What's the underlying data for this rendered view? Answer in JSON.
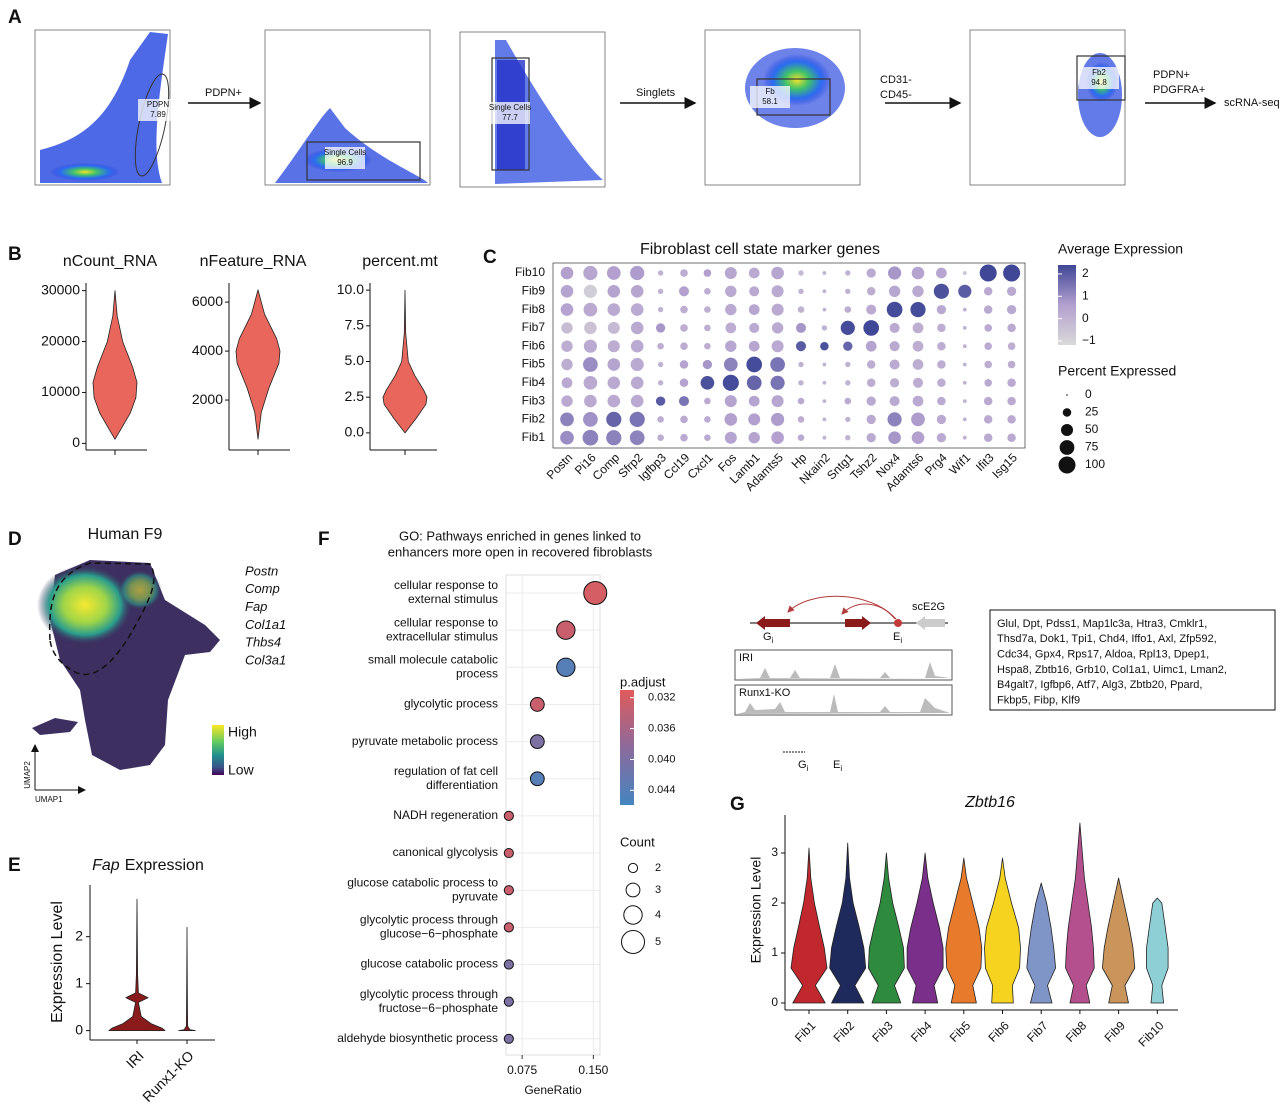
{
  "panel_labels": [
    "A",
    "B",
    "C",
    "D",
    "E",
    "F",
    "G"
  ],
  "a": {
    "gates": [
      {
        "name": "PDPN",
        "value": 7.89
      },
      {
        "name": "Single Cells",
        "value": 96.9
      },
      {
        "name": "Single Cells",
        "value": 77.7
      },
      {
        "name": "Fb",
        "value": 58.1
      },
      {
        "name": "Fb2",
        "value": 94.8
      }
    ],
    "steps": [
      [
        "PDPN+"
      ],
      [
        "Singlets"
      ],
      [
        "CD31-",
        "CD45-"
      ],
      [
        "PDPN+",
        "PDGFRA+"
      ]
    ],
    "output": "scRNA-seq"
  },
  "b": {
    "charts": [
      {
        "type": "violin",
        "title": "nCount_RNA",
        "color": "#e8665c",
        "ylim": [
          -1300,
          31500
        ],
        "yticks": [
          0,
          10000,
          20000,
          30000
        ],
        "y": [
          800,
          3000,
          6000,
          9000,
          12000,
          15000,
          20000,
          25000,
          30000
        ],
        "density": [
          0,
          0.3,
          0.7,
          0.95,
          1,
          0.8,
          0.35,
          0.1,
          0
        ]
      },
      {
        "type": "violin",
        "title": "nFeature_RNA",
        "color": "#e8665c",
        "ylim": [
          -40,
          6780
        ],
        "yticks": [
          2000,
          4000,
          6000
        ],
        "y": [
          400,
          1500,
          2500,
          3500,
          4000,
          4500,
          5500,
          6500
        ],
        "density": [
          0,
          0.15,
          0.5,
          0.95,
          1,
          0.85,
          0.3,
          0
        ]
      },
      {
        "type": "violin",
        "title": "percent.mt",
        "color": "#e8665c",
        "ylim": [
          -1.2,
          10.5
        ],
        "yticks": [
          {
            "value": 0,
            "label": "0.0"
          },
          2.5,
          {
            "value": 5,
            "label": "5.0"
          },
          7.5,
          {
            "value": 10,
            "label": "10.0"
          }
        ],
        "y": [
          0,
          1,
          2,
          2.5,
          3,
          4,
          5,
          7,
          10
        ],
        "density": [
          0,
          0.5,
          0.95,
          1,
          0.85,
          0.45,
          0.15,
          0.03,
          0
        ]
      }
    ]
  },
  "c": {
    "type": "dotplot",
    "title": "Fibroblast cell state marker genes",
    "rows": [
      "Fib10",
      "Fib9",
      "Fib8",
      "Fib7",
      "Fib6",
      "Fib5",
      "Fib4",
      "Fib3",
      "Fib2",
      "Fib1"
    ],
    "genes": [
      "Postn",
      "Pi16",
      "Comp",
      "Sfrp2",
      "Igfbp3",
      "Ccl19",
      "Cxcl1",
      "Fos",
      "Lamb1",
      "Adamts5",
      "Hp",
      "Nkain2",
      "Sntg1",
      "Tshz2",
      "Nox4",
      "Adamts6",
      "Prg4",
      "Wif1",
      "Ifit3",
      "Isg15"
    ],
    "expression": [
      [
        0.6,
        0.4,
        0.6,
        0.7,
        0,
        0.2,
        0.6,
        0.4,
        0.3,
        0.4,
        -0.2,
        0,
        0,
        0.3,
        0.8,
        0.5,
        0.4,
        -0.5,
        2.5,
        2.5
      ],
      [
        0.5,
        -0.8,
        0.5,
        0.4,
        0,
        0.6,
        0.2,
        0.3,
        0.3,
        0.3,
        0,
        0,
        0,
        0.2,
        0.4,
        0.3,
        2.2,
        2.0,
        0.3,
        0.3
      ],
      [
        0.5,
        0.3,
        0.3,
        0.3,
        0,
        0.2,
        0.2,
        0.3,
        0.4,
        0.3,
        0,
        0,
        0.2,
        0.3,
        2.3,
        2.3,
        0.3,
        0,
        0.3,
        0.3
      ],
      [
        -0.3,
        -0.5,
        -0.2,
        0.3,
        0.8,
        0.2,
        0.2,
        0.2,
        0.3,
        0.3,
        0.8,
        0,
        2.3,
        2.4,
        0.3,
        0.2,
        0.2,
        0,
        0.3,
        0.3
      ],
      [
        0.2,
        0.3,
        0.2,
        0.3,
        0.2,
        0.2,
        0.2,
        0.4,
        0.4,
        0.3,
        2.0,
        2.2,
        1.8,
        0.5,
        0.3,
        0.2,
        0.2,
        0,
        0.3,
        0.2
      ],
      [
        0.2,
        1.0,
        0.5,
        0.3,
        0,
        0.5,
        0.8,
        1.2,
        2.3,
        1.5,
        0,
        0,
        0,
        0.2,
        0.3,
        0.2,
        0.2,
        0,
        0.2,
        0.2
      ],
      [
        0.3,
        0.3,
        0.3,
        0.3,
        0,
        0.5,
        2.2,
        2.3,
        1.8,
        1.5,
        0,
        0,
        0,
        0.2,
        0.2,
        0.2,
        0.2,
        0,
        0.3,
        0.3
      ],
      [
        0.3,
        0.3,
        0.3,
        0.3,
        2.0,
        1.5,
        0.3,
        0.5,
        0.5,
        0.4,
        0.3,
        0,
        0.3,
        0.3,
        0.3,
        0.3,
        0.3,
        0,
        0.3,
        0.3
      ],
      [
        1.2,
        0.9,
        1.8,
        1.5,
        0.2,
        0.3,
        0.3,
        0.6,
        0.6,
        0.7,
        0.2,
        0,
        0,
        0.3,
        1.2,
        0.7,
        0.3,
        0,
        0.3,
        0.3
      ],
      [
        1.0,
        1.2,
        1.2,
        1.2,
        0.2,
        0.3,
        0.3,
        0.5,
        0.5,
        0.6,
        0.3,
        0,
        0,
        0.3,
        0.8,
        0.6,
        0.3,
        0,
        0.3,
        0.3
      ]
    ],
    "percent": [
      [
        55,
        70,
        65,
        70,
        10,
        20,
        20,
        50,
        40,
        55,
        10,
        5,
        10,
        30,
        60,
        55,
        40,
        5,
        100,
        100
      ],
      [
        55,
        60,
        55,
        55,
        10,
        35,
        15,
        45,
        35,
        50,
        10,
        5,
        10,
        25,
        45,
        45,
        80,
        60,
        25,
        30
      ],
      [
        55,
        65,
        55,
        55,
        10,
        20,
        15,
        45,
        40,
        50,
        15,
        5,
        15,
        35,
        85,
        80,
        30,
        5,
        25,
        30
      ],
      [
        45,
        55,
        50,
        55,
        30,
        20,
        15,
        40,
        35,
        45,
        35,
        10,
        70,
        85,
        35,
        40,
        25,
        5,
        20,
        25
      ],
      [
        45,
        60,
        50,
        55,
        15,
        20,
        15,
        45,
        40,
        50,
        35,
        25,
        30,
        40,
        35,
        40,
        25,
        5,
        20,
        20
      ],
      [
        45,
        75,
        55,
        60,
        10,
        25,
        30,
        65,
        85,
        75,
        10,
        5,
        10,
        25,
        35,
        40,
        25,
        5,
        20,
        20
      ],
      [
        40,
        65,
        55,
        55,
        10,
        25,
        65,
        90,
        75,
        70,
        10,
        5,
        10,
        25,
        30,
        35,
        25,
        5,
        20,
        25
      ],
      [
        45,
        55,
        55,
        55,
        30,
        35,
        15,
        50,
        40,
        50,
        15,
        5,
        15,
        30,
        35,
        40,
        25,
        5,
        25,
        25
      ],
      [
        65,
        75,
        80,
        80,
        15,
        20,
        15,
        55,
        50,
        60,
        15,
        5,
        10,
        30,
        70,
        65,
        30,
        5,
        25,
        25
      ],
      [
        65,
        85,
        80,
        75,
        15,
        20,
        15,
        50,
        45,
        55,
        15,
        5,
        10,
        30,
        55,
        55,
        30,
        5,
        25,
        25
      ]
    ],
    "color_title": "Average Expression",
    "colors": [
      "#d9d9d9",
      "#b3a0cf",
      "#3f4796"
    ],
    "clim": [
      -1.18,
      2.4
    ],
    "color_ticks": [
      2,
      1,
      0,
      {
        "value": -1,
        "label": "−1"
      }
    ],
    "size_title": "Percent Expressed",
    "size_ticks": [
      0,
      25,
      50,
      75,
      100
    ]
  },
  "d": {
    "title": "Human F9",
    "genes": [
      "Postn",
      "Comp",
      "Fap",
      "Col1a1",
      "Thbs4",
      "Col3a1"
    ],
    "high": "High",
    "low": "Low",
    "x_label": "UMAP1",
    "y_label": "UMAP2"
  },
  "e": {
    "type": "violin",
    "gene": "Fap",
    "title": "Expression",
    "y_label": "Expression Level",
    "ylim": [
      -0.2,
      3.1
    ],
    "yticks": [
      0,
      1,
      2
    ],
    "categories": [
      "IRI",
      "Runx1-KO"
    ],
    "violins": [
      {
        "color": "#8b1a1a",
        "y": [
          0,
          0.05,
          0.15,
          0.3,
          0.6,
          0.7,
          0.8,
          1.2,
          2,
          2.8
        ],
        "density": [
          1,
          0.9,
          0.5,
          0.15,
          0.05,
          0.4,
          0.05,
          0.02,
          0.01,
          0
        ]
      },
      {
        "color": "#8b1a1a",
        "y": [
          0,
          0.02,
          0.1,
          1,
          2.2
        ],
        "density": [
          0.3,
          0.1,
          0.02,
          0.01,
          0
        ]
      }
    ]
  },
  "f": {
    "type": "dotplot",
    "title": [
      "GO: Pathways enriched in genes linked to",
      "enhancers more open in recovered fibroblasts"
    ],
    "x_label": "GeneRatio",
    "xlim": [
      0.058,
      0.157
    ],
    "xticks": [
      0.075,
      {
        "value": 0.15,
        "label": "0.150"
      }
    ],
    "terms": [
      {
        "label": [
          "cellular response to",
          "external stimulus"
        ],
        "gene_ratio": 0.152,
        "count": 5,
        "p_adjust": 0.032
      },
      {
        "label": [
          "cellular response to",
          "extracellular stimulus"
        ],
        "gene_ratio": 0.121,
        "count": 4,
        "p_adjust": 0.033
      },
      {
        "label": [
          "small molecule catabolic",
          "process"
        ],
        "gene_ratio": 0.121,
        "count": 4,
        "p_adjust": 0.044
      },
      {
        "label": [
          "glycolytic process"
        ],
        "gene_ratio": 0.091,
        "count": 3,
        "p_adjust": 0.033
      },
      {
        "label": [
          "pyruvate metabolic process"
        ],
        "gene_ratio": 0.091,
        "count": 3,
        "p_adjust": 0.04
      },
      {
        "label": [
          "regulation of fat cell",
          "differentiation"
        ],
        "gene_ratio": 0.091,
        "count": 3,
        "p_adjust": 0.044
      },
      {
        "label": [
          "NADH regeneration"
        ],
        "gene_ratio": 0.061,
        "count": 2,
        "p_adjust": 0.033
      },
      {
        "label": [
          "canonical glycolysis"
        ],
        "gene_ratio": 0.061,
        "count": 2,
        "p_adjust": 0.033
      },
      {
        "label": [
          "glucose catabolic process to",
          "pyruvate"
        ],
        "gene_ratio": 0.061,
        "count": 2,
        "p_adjust": 0.033
      },
      {
        "label": [
          "glycolytic process through",
          "glucose−6−phosphate"
        ],
        "gene_ratio": 0.061,
        "count": 2,
        "p_adjust": 0.033
      },
      {
        "label": [
          "glucose catabolic process"
        ],
        "gene_ratio": 0.061,
        "count": 2,
        "p_adjust": 0.04
      },
      {
        "label": [
          "glycolytic process through",
          "fructose−6−phosphate"
        ],
        "gene_ratio": 0.061,
        "count": 2,
        "p_adjust": 0.04
      },
      {
        "label": [
          "aldehyde biosynthetic process"
        ],
        "gene_ratio": 0.061,
        "count": 2,
        "p_adjust": 0.04
      }
    ],
    "color_title": "p.adjust",
    "colors": [
      "#e05b5b",
      "#8c6a9c",
      "#4485c0"
    ],
    "clim": [
      0.031,
      0.0459
    ],
    "color_ticks": [
      0.032,
      0.036,
      {
        "value": 0.04,
        "label": "0.040"
      },
      0.044
    ],
    "size_title": "Count",
    "size_ticks": [
      2,
      3,
      4,
      5
    ]
  },
  "genome": {
    "method": "scE2G",
    "gene": "G",
    "enhancer": "E",
    "index": "i",
    "tracks": [
      "IRI",
      "Runx1-KO"
    ]
  },
  "enhancer_genes": {
    "lines": [
      "Glul, Dpt, Pdss1, Map1lc3a, Htra3, Cmklr1,",
      "Thsd7a, Dok1, Tpi1, Chd4, Iffo1, Axl, Zfp592,",
      "Cdc34, Gpx4, Rps17, Aldoa, Rpl13, Dpep1,",
      "Hspa8, Zbtb16, Grb10, Col1a1, Uimc1, Lman2,",
      "B4galt7, Igfbp6, Atf7, Alg3, Zbtb20, Ppard,",
      "Fkbp5, Fibp, Klf9"
    ]
  },
  "g": {
    "type": "violin",
    "title": "Zbtb16",
    "y_label": "Expression Level",
    "ylim": [
      -0.14,
      3.76
    ],
    "yticks": [
      0,
      1,
      2,
      3
    ],
    "categories": [
      "Fib1",
      "Fib2",
      "Fib3",
      "Fib4",
      "Fib5",
      "Fib6",
      "Fib7",
      "Fib8",
      "Fib9",
      "Fib10"
    ],
    "violins": [
      {
        "color": "#c0282d",
        "y": [
          0,
          0.35,
          0.7,
          1.1,
          1.5,
          2,
          2.5,
          3.1
        ],
        "density": [
          0.9,
          0.35,
          1,
          0.85,
          0.6,
          0.3,
          0.1,
          0
        ]
      },
      {
        "color": "#1f2a5c",
        "y": [
          0,
          0.35,
          0.7,
          1.1,
          1.5,
          2,
          2.5,
          3.2
        ],
        "density": [
          0.9,
          0.4,
          1,
          0.9,
          0.65,
          0.3,
          0.1,
          0
        ]
      },
      {
        "color": "#2e8b3e",
        "y": [
          0,
          0.35,
          0.7,
          1.1,
          1.5,
          2,
          2.5,
          3.0
        ],
        "density": [
          0.8,
          0.45,
          1,
          0.95,
          0.7,
          0.35,
          0.12,
          0
        ]
      },
      {
        "color": "#7a2f8a",
        "y": [
          0,
          0.35,
          0.7,
          1.1,
          1.5,
          2,
          2.5,
          3.0
        ],
        "density": [
          0.7,
          0.5,
          1,
          1,
          0.8,
          0.45,
          0.15,
          0
        ]
      },
      {
        "color": "#e87a2c",
        "y": [
          0,
          0.35,
          0.7,
          1.1,
          1.5,
          2,
          2.5,
          2.9
        ],
        "density": [
          0.7,
          0.5,
          0.95,
          1,
          0.85,
          0.5,
          0.15,
          0
        ]
      },
      {
        "color": "#f5d31e",
        "y": [
          0,
          0.35,
          0.7,
          1.1,
          1.5,
          2,
          2.5,
          2.9
        ],
        "density": [
          0.6,
          0.55,
          0.95,
          1,
          0.9,
          0.5,
          0.15,
          0
        ]
      },
      {
        "color": "#8095c7",
        "y": [
          0,
          0.35,
          0.7,
          1.1,
          1.5,
          2,
          2.4
        ],
        "density": [
          0.6,
          0.35,
          0.8,
          0.7,
          0.55,
          0.3,
          0
        ]
      },
      {
        "color": "#b5508f",
        "y": [
          0,
          0.35,
          0.7,
          1.1,
          1.5,
          2,
          2.5,
          3.6
        ],
        "density": [
          0.55,
          0.35,
          0.8,
          0.75,
          0.65,
          0.45,
          0.25,
          0
        ]
      },
      {
        "color": "#c9955a",
        "y": [
          0,
          0.35,
          0.7,
          1.1,
          1.5,
          2,
          2.5
        ],
        "density": [
          0.55,
          0.35,
          0.9,
          0.8,
          0.6,
          0.3,
          0
        ]
      },
      {
        "color": "#8ecfd6",
        "y": [
          0,
          0.35,
          0.7,
          1.1,
          1.5,
          2,
          2.1
        ],
        "density": [
          0.35,
          0.25,
          0.6,
          0.6,
          0.45,
          0.25,
          0
        ]
      }
    ]
  }
}
